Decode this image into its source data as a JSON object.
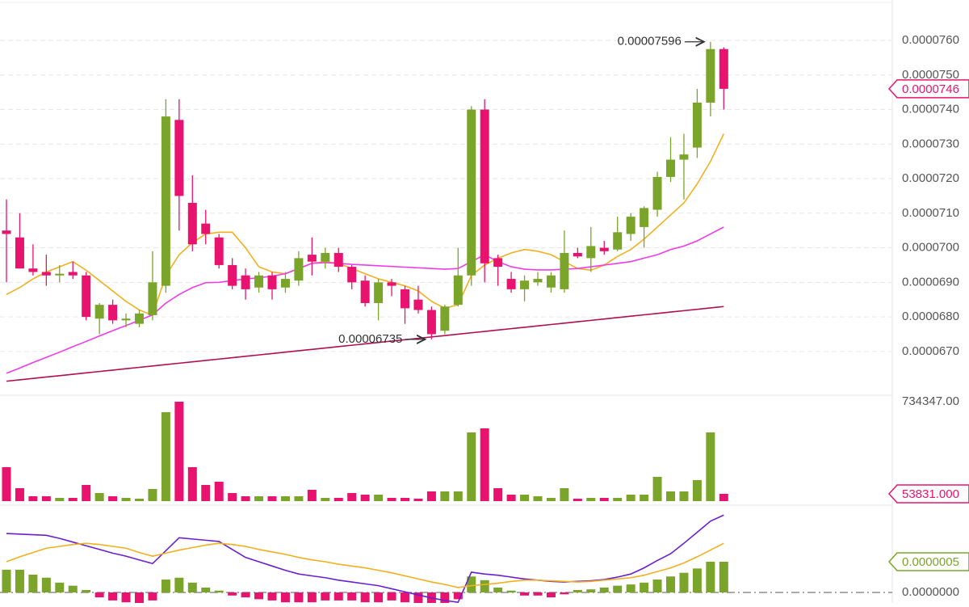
{
  "chart_data": [
    {
      "type": "candlestick",
      "up_color": "#7aa52a",
      "down_color": "#e8136f",
      "open": [
        7.05e-05,
        7.03e-05,
        6.94e-05,
        6.93e-05,
        6.92e-05,
        6.93e-05,
        6.92e-05,
        6.795e-05,
        6.835e-05,
        6.79e-05,
        6.78e-05,
        6.805e-05,
        6.89e-05,
        7.37e-05,
        7.13e-05,
        7.07e-05,
        7.03e-05,
        6.95e-05,
        6.92e-05,
        6.885e-05,
        6.92e-05,
        6.885e-05,
        6.905e-05,
        6.98e-05,
        6.96e-05,
        6.985e-05,
        6.945e-05,
        6.905e-05,
        6.84e-05,
        6.9e-05,
        6.88e-05,
        6.85e-05,
        6.82e-05,
        6.76e-05,
        6.835e-05,
        6.92e-05,
        7.4e-05,
        6.97e-05,
        6.91e-05,
        6.88e-05,
        6.9e-05,
        6.885e-05,
        6.88e-05,
        6.985e-05,
        6.97e-05,
        7e-05,
        6.995e-05,
        7.04e-05,
        7.06e-05,
        7.11e-05,
        7.205e-05,
        7.255e-05,
        7.29e-05,
        7.42e-05,
        7.575e-05
      ],
      "high": [
        7.14e-05,
        7.1e-05,
        7.01e-05,
        6.98e-05,
        6.95e-05,
        6.96e-05,
        6.93e-05,
        6.84e-05,
        6.85e-05,
        6.81e-05,
        6.82e-05,
        6.99e-05,
        7.43e-05,
        7.43e-05,
        7.21e-05,
        7.11e-05,
        7.04e-05,
        6.97e-05,
        6.94e-05,
        6.93e-05,
        6.93e-05,
        6.93e-05,
        6.99e-05,
        7.03e-05,
        7e-05,
        7e-05,
        6.95e-05,
        6.92e-05,
        6.91e-05,
        6.91e-05,
        6.89e-05,
        6.89e-05,
        6.83e-05,
        6.835e-05,
        7e-05,
        7.41e-05,
        7.43e-05,
        6.98e-05,
        6.93e-05,
        6.92e-05,
        6.93e-05,
        6.93e-05,
        7.05e-05,
        7e-05,
        7.06e-05,
        7.02e-05,
        7.09e-05,
        7.1e-05,
        7.12e-05,
        7.22e-05,
        7.32e-05,
        7.33e-05,
        7.46e-05,
        7.596e-05,
        7.58e-05
      ],
      "low": [
        6.9e-05,
        6.94e-05,
        6.92e-05,
        6.89e-05,
        6.9e-05,
        6.91e-05,
        6.79e-05,
        6.75e-05,
        6.78e-05,
        6.77e-05,
        6.77e-05,
        6.79e-05,
        6.87e-05,
        7.05e-05,
        6.99e-05,
        7.01e-05,
        6.94e-05,
        6.88e-05,
        6.85e-05,
        6.87e-05,
        6.85e-05,
        6.87e-05,
        6.89e-05,
        6.92e-05,
        6.94e-05,
        6.93e-05,
        6.88e-05,
        6.83e-05,
        6.79e-05,
        6.86e-05,
        6.78e-05,
        6.81e-05,
        6.735e-05,
        6.75e-05,
        6.83e-05,
        6.89e-05,
        6.9e-05,
        6.89e-05,
        6.87e-05,
        6.845e-05,
        6.89e-05,
        6.87e-05,
        6.87e-05,
        6.97e-05,
        6.93e-05,
        6.98e-05,
        6.99e-05,
        7.02e-05,
        7e-05,
        7.09e-05,
        7.19e-05,
        7.14e-05,
        7.26e-05,
        7.38e-05,
        7.4e-05
      ],
      "close": [
        7.04e-05,
        6.94e-05,
        6.93e-05,
        6.92e-05,
        6.925e-05,
        6.92e-05,
        6.8e-05,
        6.835e-05,
        6.79e-05,
        6.795e-05,
        6.81e-05,
        6.9e-05,
        7.38e-05,
        7.15e-05,
        7.01e-05,
        7.04e-05,
        6.95e-05,
        6.89e-05,
        6.88e-05,
        6.92e-05,
        6.88e-05,
        6.91e-05,
        6.97e-05,
        6.96e-05,
        6.985e-05,
        6.945e-05,
        6.9e-05,
        6.84e-05,
        6.9e-05,
        6.89e-05,
        6.825e-05,
        6.82e-05,
        6.75e-05,
        6.83e-05,
        6.92e-05,
        7.4e-05,
        6.955e-05,
        6.945e-05,
        6.88e-05,
        6.905e-05,
        6.91e-05,
        6.92e-05,
        6.985e-05,
        6.975e-05,
        7.005e-05,
        6.99e-05,
        7.045e-05,
        7.09e-05,
        7.115e-05,
        7.205e-05,
        7.255e-05,
        7.27e-05,
        7.42e-05,
        7.575e-05,
        7.46e-05
      ],
      "series": [
        {
          "color": "#f2b01e",
          "values": [
            6.865e-05,
            6.885e-05,
            6.91e-05,
            6.93e-05,
            6.945e-05,
            6.96e-05,
            6.935e-05,
            6.905e-05,
            6.875e-05,
            6.845e-05,
            6.82e-05,
            6.805e-05,
            6.92e-05,
            6.98e-05,
            7.015e-05,
            7.04e-05,
            7.045e-05,
            7.045e-05,
            7e-05,
            6.945e-05,
            6.93e-05,
            6.925e-05,
            6.94e-05,
            6.955e-05,
            6.96e-05,
            6.955e-05,
            6.94e-05,
            6.925e-05,
            6.91e-05,
            6.9e-05,
            6.89e-05,
            6.875e-05,
            6.845e-05,
            6.825e-05,
            6.835e-05,
            6.92e-05,
            6.95e-05,
            6.97e-05,
            6.985e-05,
            6.995e-05,
            6.99e-05,
            6.98e-05,
            6.96e-05,
            6.94e-05,
            6.935e-05,
            6.95e-05,
            6.975e-05,
            6.995e-05,
            7.025e-05,
            7.06e-05,
            7.095e-05,
            7.13e-05,
            7.185e-05,
            7.25e-05,
            7.33e-05
          ]
        },
        {
          "color": "#f03ce8",
          "values": [
            6.637e-05,
            6.652e-05,
            6.668e-05,
            6.683e-05,
            6.698e-05,
            6.714e-05,
            6.729e-05,
            6.745e-05,
            6.76e-05,
            6.775e-05,
            6.79e-05,
            6.806e-05,
            6.84e-05,
            6.865e-05,
            6.885e-05,
            6.899e-05,
            6.9e-05,
            6.905e-05,
            6.91e-05,
            6.913e-05,
            6.918e-05,
            6.925e-05,
            6.94e-05,
            6.955e-05,
            6.957e-05,
            6.955e-05,
            6.952e-05,
            6.95e-05,
            6.948e-05,
            6.946e-05,
            6.944e-05,
            6.942e-05,
            6.94e-05,
            6.938e-05,
            6.94e-05,
            6.96e-05,
            6.98e-05,
            6.96e-05,
            6.945e-05,
            6.938e-05,
            6.936e-05,
            6.936e-05,
            6.938e-05,
            6.94e-05,
            6.945e-05,
            6.95e-05,
            6.955e-05,
            6.96e-05,
            6.97e-05,
            6.98e-05,
            6.995e-05,
            7.005e-05,
            7.02e-05,
            7.04e-05,
            7.06e-05
          ]
        },
        {
          "color": "#b01050",
          "values": [
            6.614e-05,
            6.618e-05,
            6.622e-05,
            6.626e-05,
            6.63e-05,
            6.634e-05,
            6.638e-05,
            6.642e-05,
            6.646e-05,
            6.65e-05,
            6.654e-05,
            6.658e-05,
            6.662e-05,
            6.666e-05,
            6.67e-05,
            6.674e-05,
            6.678e-05,
            6.682e-05,
            6.686e-05,
            6.69e-05,
            6.694e-05,
            6.698e-05,
            6.702e-05,
            6.706e-05,
            6.71e-05,
            6.714e-05,
            6.718e-05,
            6.722e-05,
            6.726e-05,
            6.73e-05,
            6.734e-05,
            6.738e-05,
            6.742e-05,
            6.746e-05,
            6.75e-05,
            6.754e-05,
            6.758e-05,
            6.762e-05,
            6.766e-05,
            6.77e-05,
            6.774e-05,
            6.778e-05,
            6.782e-05,
            6.786e-05,
            6.79e-05,
            6.794e-05,
            6.798e-05,
            6.802e-05,
            6.806e-05,
            6.81e-05,
            6.814e-05,
            6.818e-05,
            6.822e-05,
            6.826e-05,
            6.83e-05
          ]
        }
      ],
      "ylim": [
        6.578e-05,
        7.717e-05
      ],
      "yticks": [
        {
          "value": 7.6e-05,
          "label": "0.0000760"
        },
        {
          "value": 7.5e-05,
          "label": "0.0000750"
        },
        {
          "value": 7.4e-05,
          "label": "0.0000740"
        },
        {
          "value": 7.3e-05,
          "label": "0.0000730"
        },
        {
          "value": 7.2e-05,
          "label": "0.0000720"
        },
        {
          "value": 7.1e-05,
          "label": "0.0000710"
        },
        {
          "value": 7e-05,
          "label": "0.0000700"
        },
        {
          "value": 6.9e-05,
          "label": "0.0000690"
        },
        {
          "value": 6.8e-05,
          "label": "0.0000680"
        },
        {
          "value": 6.7e-05,
          "label": "0.0000670"
        }
      ],
      "grid": true
    },
    {
      "type": "bar",
      "values": [
        250740,
        95520,
        35820,
        35820,
        23880,
        23880,
        119400,
        59700,
        35820,
        23880,
        17910,
        89550,
        656700,
        734347,
        250740,
        119400,
        143280,
        59700,
        35820,
        35820,
        35820,
        35820,
        35820,
        83580,
        23880,
        23880,
        59700,
        47760,
        47760,
        23880,
        23880,
        17910,
        71640,
        71640,
        71640,
        507450,
        537300,
        95520,
        47760,
        47760,
        35820,
        23880,
        95520,
        17910,
        23880,
        23880,
        23880,
        47760,
        47760,
        179100,
        71640,
        71640,
        155220,
        507450,
        53831
      ],
      "last_value_label": "53831.000",
      "ylim": [
        0,
        734347
      ],
      "yticks": [
        {
          "value": 734347,
          "label": "734347.00"
        }
      ]
    },
    {
      "type": "macd",
      "up_color": "#7aa52a",
      "down_color": "#e8136f",
      "values": [
        3.7e-07,
        3.7e-07,
        2.9e-07,
        2.4e-07,
        1.6e-07,
        1.1e-07,
        4e-08,
        -8e-08,
        -1.3e-07,
        -1.6e-07,
        -1.8e-07,
        -1.3e-07,
        2.1e-07,
        2.4e-07,
        1.6e-07,
        8e-08,
        3e-08,
        -5e-08,
        -8e-08,
        -1.1e-07,
        -1.3e-07,
        -1.6e-07,
        -1.6e-07,
        -1.6e-07,
        -1.3e-07,
        -1.3e-07,
        -1.3e-07,
        -1.6e-07,
        -1.6e-07,
        -1.3e-07,
        -1.6e-07,
        -1.8e-07,
        -2.1e-07,
        -1.8e-07,
        -1.1e-07,
        2.6e-07,
        2e-07,
        8e-08,
        3e-08,
        -5e-08,
        -5e-08,
        -8e-08,
        -3e-08,
        4e-08,
        5e-08,
        8e-08,
        1.1e-07,
        1.3e-07,
        1.6e-07,
        2.1e-07,
        2.6e-07,
        3.2e-07,
        3.9e-07,
        5e-07,
        5e-07
      ],
      "last_value_label": "0.0000005",
      "series": [
        {
          "color": "#6a1fd0",
          "values": [
            9.6e-07,
            9.5e-07,
            9.4e-07,
            9.3e-07,
            8.8e-07,
            8.2e-07,
            7.6e-07,
            7e-07,
            6.4e-07,
            5.9e-07,
            5.3e-07,
            4.7e-07,
            6.8e-07,
            8.9e-07,
            8.7e-07,
            8.5e-07,
            8.3e-07,
            7e-07,
            5.7e-07,
            5e-07,
            4.3e-07,
            3.6e-07,
            3e-07,
            2.7e-07,
            2.4e-07,
            2e-07,
            1.7e-07,
            1.4e-07,
            1.1e-07,
            6e-08,
            1e-08,
            -4e-08,
            -9e-08,
            -1.3e-07,
            -1.6e-07,
            3.3e-07,
            3e-07,
            2.8e-07,
            2.5e-07,
            2.2e-07,
            2e-07,
            1.8e-07,
            1.7e-07,
            1.8e-07,
            1.9e-07,
            2.1e-07,
            2.5e-07,
            3e-07,
            4e-07,
            5.2e-07,
            6.3e-07,
            8e-07,
            9.8e-07,
            1.16e-06,
            1.26e-06
          ]
        },
        {
          "color": "#f2b01e",
          "values": [
            5e-07,
            5.8e-07,
            6.5e-07,
            7.2e-07,
            7.5e-07,
            7.8e-07,
            8e-07,
            7.8e-07,
            7.5e-07,
            7.2e-07,
            6.5e-07,
            5.9e-07,
            6.4e-07,
            6.9e-07,
            7.3e-07,
            7.7e-07,
            8e-07,
            7.8e-07,
            7.5e-07,
            7e-07,
            6.6e-07,
            6.2e-07,
            5.7e-07,
            5.3e-07,
            5e-07,
            4.6e-07,
            4.3e-07,
            4e-07,
            3.6e-07,
            3.2e-07,
            2.7e-07,
            2.2e-07,
            1.7e-07,
            1.3e-07,
            8e-08,
            1.1e-07,
            1.3e-07,
            1.5e-07,
            1.8e-07,
            2e-07,
            2e-07,
            1.9e-07,
            1.8e-07,
            1.7e-07,
            1.8e-07,
            2e-07,
            2.2e-07,
            2.4e-07,
            2.8e-07,
            3.4e-07,
            4e-07,
            4.8e-07,
            5.8e-07,
            6.9e-07,
            8e-07
          ]
        }
      ],
      "ylim": [
        -1.71e-07,
        1.355e-06
      ],
      "yticks": [
        {
          "value": 0,
          "label": "0.0000000"
        }
      ]
    }
  ]
}
